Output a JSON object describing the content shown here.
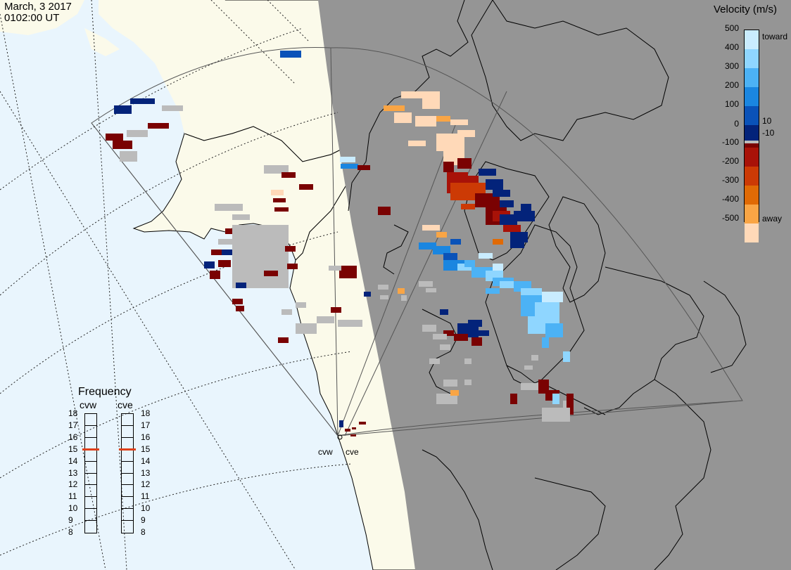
{
  "header": {
    "date": "March, 3 2017",
    "time": "0102:00 UT"
  },
  "legend": {
    "title": "Velocity (m/s)",
    "toward_label": "toward",
    "away_label": "away",
    "ticks": [
      "500",
      "400",
      "300",
      "200",
      "100",
      "10",
      "0",
      "-10",
      "-100",
      "-200",
      "-300",
      "-400",
      "-500"
    ],
    "colors": [
      "#c9ecff",
      "#8fd6ff",
      "#4cb2f5",
      "#1a86e0",
      "#0a52b8",
      "#03237a",
      "#bbbbbb",
      "#7a0202",
      "#a81208",
      "#cc3a05",
      "#e06a05",
      "#f9a545",
      "#ffd9b8"
    ]
  },
  "frequency": {
    "title": "Frequency",
    "left_site": "cvw",
    "right_site": "cve",
    "ticks": [
      "18",
      "17",
      "16",
      "15",
      "14",
      "13",
      "12",
      "11",
      "10",
      "9",
      "8"
    ],
    "left_value_mhz": 15,
    "right_value_mhz": 15,
    "marker_color": "#e0401a"
  },
  "map": {
    "site_labels": {
      "west": "cvw",
      "east": "cve"
    },
    "land_color": "#fbfaea",
    "ocean_color": "#e9f5fd",
    "night_color": "#959595"
  }
}
